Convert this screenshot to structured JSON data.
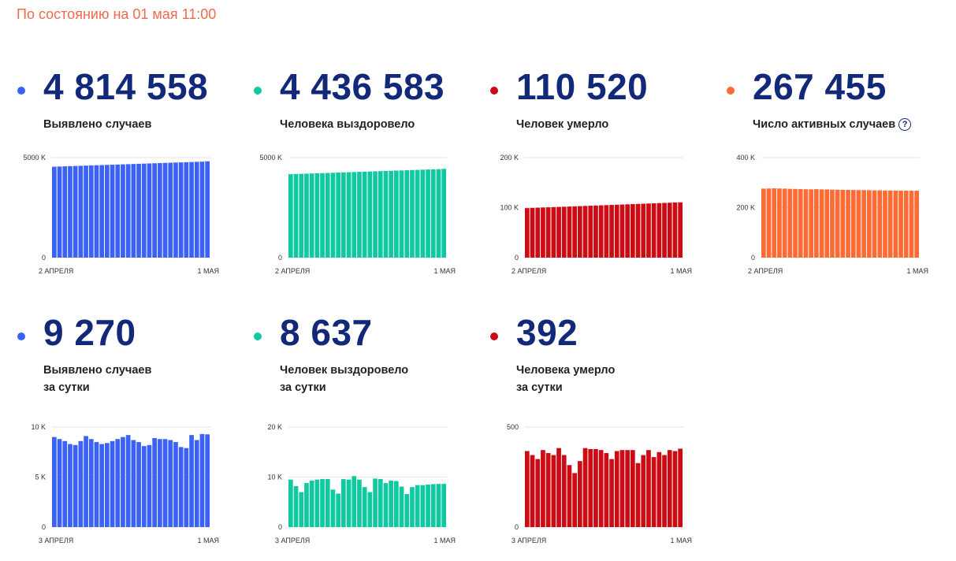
{
  "status_text": "По состоянию на 01 мая 11:00",
  "cards": [
    {
      "value": "4 814 558",
      "label": [
        "Выявлено случаев"
      ],
      "color": "#3b61f5",
      "help": false
    },
    {
      "value": "4 436 583",
      "label": [
        "Человека выздоровело"
      ],
      "color": "#10c9a1",
      "help": false
    },
    {
      "value": "110 520",
      "label": [
        "Человек умерло"
      ],
      "color": "#cc0b14",
      "help": false
    },
    {
      "value": "267 455",
      "label": [
        "Число активных случаев"
      ],
      "color": "#ff6b35",
      "help": true,
      "help_glyph": "?"
    },
    {
      "value": "9 270",
      "label": [
        "Выявлено случаев",
        "за сутки"
      ],
      "color": "#3b61f5",
      "help": false
    },
    {
      "value": "8 637",
      "label": [
        "Человек выздоровело",
        "за сутки"
      ],
      "color": "#10c9a1",
      "help": false
    },
    {
      "value": "392",
      "label": [
        "Человека умерло",
        "за сутки"
      ],
      "color": "#cc0b14",
      "help": false
    }
  ],
  "chart_data": [
    {
      "type": "bar",
      "title": "Выявлено случаев",
      "x_start_label": "2 АПРЕЛЯ",
      "x_end_label": "1 МАЯ",
      "y_ticks": [
        {
          "v": 0,
          "l": "0"
        },
        {
          "v": 5000000,
          "l": "5000 K"
        }
      ],
      "ylim": [
        0,
        5000000
      ],
      "color": "#3b61f5",
      "values": [
        4545000,
        4554000,
        4563000,
        4572000,
        4581000,
        4590000,
        4599000,
        4608000,
        4617000,
        4626000,
        4635000,
        4644000,
        4653000,
        4662000,
        4671000,
        4680000,
        4689000,
        4698000,
        4707000,
        4716000,
        4725000,
        4734000,
        4743000,
        4752000,
        4761000,
        4770000,
        4779000,
        4788000,
        4797000,
        4814558
      ]
    },
    {
      "type": "bar",
      "title": "Человека выздоровело",
      "x_start_label": "2 АПРЕЛЯ",
      "x_end_label": "1 МАЯ",
      "y_ticks": [
        {
          "v": 0,
          "l": "0"
        },
        {
          "v": 5000000,
          "l": "5000 K"
        }
      ],
      "ylim": [
        0,
        5000000
      ],
      "color": "#10c9a1",
      "values": [
        4170000,
        4179000,
        4188000,
        4197000,
        4206000,
        4215000,
        4224000,
        4233000,
        4242000,
        4251000,
        4260000,
        4269000,
        4278000,
        4287000,
        4296000,
        4305000,
        4314000,
        4323000,
        4332000,
        4341000,
        4350000,
        4359000,
        4368000,
        4377000,
        4386000,
        4395000,
        4404000,
        4413000,
        4422000,
        4436583
      ]
    },
    {
      "type": "bar",
      "title": "Человек умерло",
      "x_start_label": "2 АПРЕЛЯ",
      "x_end_label": "1 МАЯ",
      "y_ticks": [
        {
          "v": 0,
          "l": "0"
        },
        {
          "v": 100000,
          "l": "100 K"
        },
        {
          "v": 200000,
          "l": "200 K"
        }
      ],
      "ylim": [
        0,
        200000
      ],
      "color": "#cc0b14",
      "values": [
        99000,
        99400,
        99800,
        100200,
        100600,
        101000,
        101400,
        101800,
        102200,
        102600,
        103000,
        103400,
        103800,
        104200,
        104600,
        105000,
        105400,
        105800,
        106200,
        106600,
        107000,
        107400,
        107800,
        108200,
        108600,
        109000,
        109400,
        109800,
        110200,
        110520
      ]
    },
    {
      "type": "bar",
      "title": "Число активных случаев",
      "x_start_label": "2 АПРЕЛЯ",
      "x_end_label": "1 МАЯ",
      "y_ticks": [
        {
          "v": 0,
          "l": "0"
        },
        {
          "v": 200000,
          "l": "200 K"
        },
        {
          "v": 400000,
          "l": "400 K"
        }
      ],
      "ylim": [
        0,
        400000
      ],
      "color": "#ff6b35",
      "values": [
        276000,
        276500,
        277000,
        276500,
        276000,
        275000,
        274500,
        274000,
        273500,
        273000,
        273500,
        273000,
        272500,
        272000,
        271500,
        271000,
        271000,
        270500,
        270000,
        270000,
        269500,
        269000,
        269000,
        268500,
        268500,
        268000,
        268000,
        267800,
        267600,
        267455
      ]
    },
    {
      "type": "bar",
      "title": "Выявлено случаев за сутки",
      "x_start_label": "3 АПРЕЛЯ",
      "x_end_label": "1 МАЯ",
      "y_ticks": [
        {
          "v": 0,
          "l": "0"
        },
        {
          "v": 5000,
          "l": "5 K"
        },
        {
          "v": 10000,
          "l": "10 K"
        }
      ],
      "ylim": [
        0,
        10000
      ],
      "color": "#3b61f5",
      "values": [
        9000,
        8800,
        8600,
        8300,
        8200,
        8600,
        9100,
        8800,
        8500,
        8300,
        8400,
        8600,
        8800,
        9000,
        9200,
        8700,
        8500,
        8100,
        8200,
        8900,
        8800,
        8800,
        8700,
        8500,
        8000,
        7900,
        9200,
        8700,
        9300,
        9270
      ]
    },
    {
      "type": "bar",
      "title": "Человек выздоровело за сутки",
      "x_start_label": "3 АПРЕЛЯ",
      "x_end_label": "1 МАЯ",
      "y_ticks": [
        {
          "v": 0,
          "l": "0"
        },
        {
          "v": 10000,
          "l": "10 K"
        },
        {
          "v": 20000,
          "l": "20 K"
        }
      ],
      "ylim": [
        0,
        20000
      ],
      "color": "#10c9a1",
      "values": [
        9500,
        8200,
        7000,
        8800,
        9300,
        9500,
        9600,
        9600,
        7500,
        6700,
        9600,
        9500,
        10200,
        9500,
        8000,
        7000,
        9700,
        9600,
        8800,
        9300,
        9200,
        8100,
        6600,
        8000,
        8400,
        8400,
        8500,
        8600,
        8637,
        8637
      ]
    },
    {
      "type": "bar",
      "title": "Человека умерло за сутки",
      "x_start_label": "3 АПРЕЛЯ",
      "x_end_label": "1 МАЯ",
      "y_ticks": [
        {
          "v": 0,
          "l": "0"
        },
        {
          "v": 500,
          "l": "500"
        }
      ],
      "ylim": [
        0,
        500
      ],
      "color": "#cc0b14",
      "values": [
        380,
        360,
        340,
        385,
        370,
        360,
        395,
        360,
        310,
        270,
        330,
        395,
        390,
        390,
        385,
        370,
        340,
        380,
        385,
        385,
        385,
        320,
        360,
        385,
        350,
        375,
        360,
        385,
        380,
        392
      ]
    }
  ]
}
